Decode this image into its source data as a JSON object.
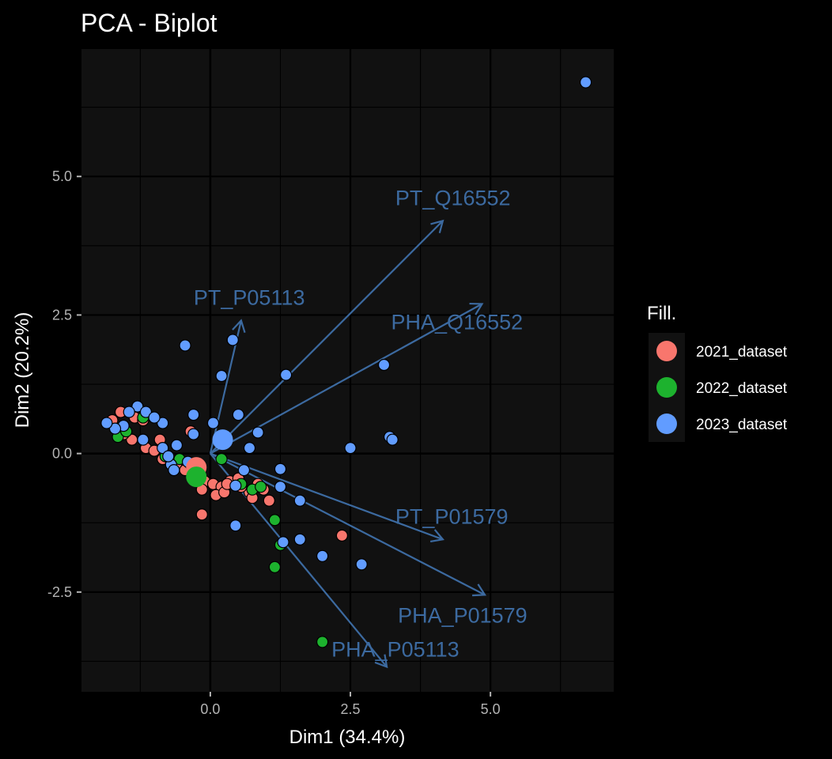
{
  "chart_data": {
    "type": "scatter",
    "title": "PCA - Biplot",
    "xlabel": "Dim1 (34.4%)",
    "ylabel": "Dim2 (20.2%)",
    "xlim": [
      -2.3,
      7.2
    ],
    "ylim": [
      -4.3,
      7.3
    ],
    "x_ticks": [
      0.0,
      2.5,
      5.0
    ],
    "x_tick_labels": [
      "0.0",
      "2.5",
      "5.0"
    ],
    "y_ticks": [
      -2.5,
      0.0,
      2.5,
      5.0
    ],
    "y_tick_labels": [
      "-2.5",
      "0.0",
      "2.5",
      "5.0"
    ],
    "grid": true,
    "legend": {
      "title": "Fill.",
      "position": "right",
      "entries": [
        {
          "label": "2021_dataset",
          "color": "#F8766D"
        },
        {
          "label": "2022_dataset",
          "color": "#1DB22E"
        },
        {
          "label": "2023_dataset",
          "color": "#619CFF"
        }
      ]
    },
    "arrow_color": "#3C6AA0",
    "series": [
      {
        "name": "2021_dataset",
        "color": "#F8766D",
        "centroid": [
          -0.25,
          -0.25
        ],
        "points": [
          [
            -1.6,
            0.75
          ],
          [
            -1.35,
            0.65
          ],
          [
            -1.2,
            0.6
          ],
          [
            -1.4,
            0.25
          ],
          [
            -1.15,
            0.1
          ],
          [
            -0.9,
            0.25
          ],
          [
            -1.0,
            0.05
          ],
          [
            -0.85,
            -0.1
          ],
          [
            -0.7,
            -0.15
          ],
          [
            -0.6,
            -0.25
          ],
          [
            -0.45,
            -0.3
          ],
          [
            -0.3,
            -0.45
          ],
          [
            -0.1,
            -0.5
          ],
          [
            0.05,
            -0.55
          ],
          [
            0.2,
            -0.6
          ],
          [
            0.35,
            -0.5
          ],
          [
            0.5,
            -0.45
          ],
          [
            0.7,
            -0.7
          ],
          [
            0.85,
            -0.55
          ],
          [
            0.95,
            -0.65
          ],
          [
            1.05,
            -0.85
          ],
          [
            -0.15,
            -0.65
          ],
          [
            0.1,
            -0.75
          ],
          [
            0.25,
            -0.7
          ],
          [
            0.55,
            -0.6
          ],
          [
            0.75,
            -0.8
          ],
          [
            -0.15,
            -1.1
          ],
          [
            2.35,
            -1.48
          ],
          [
            0.3,
            -0.55
          ],
          [
            -0.35,
            0.4
          ],
          [
            -1.75,
            0.6
          ],
          [
            -1.55,
            0.35
          ]
        ]
      },
      {
        "name": "2022_dataset",
        "color": "#1DB22E",
        "centroid": [
          -0.25,
          -0.42
        ],
        "points": [
          [
            -1.2,
            0.65
          ],
          [
            -1.65,
            0.3
          ],
          [
            -1.5,
            0.4
          ],
          [
            -0.8,
            -0.05
          ],
          [
            -0.55,
            -0.1
          ],
          [
            0.2,
            -0.1
          ],
          [
            0.55,
            -0.55
          ],
          [
            0.75,
            -0.65
          ],
          [
            1.15,
            -1.2
          ],
          [
            1.25,
            -1.65
          ],
          [
            1.15,
            -2.05
          ],
          [
            2.0,
            -3.4
          ],
          [
            0.9,
            -0.6
          ],
          [
            -0.35,
            -0.2
          ]
        ]
      },
      {
        "name": "2023_dataset",
        "color": "#619CFF",
        "centroid": [
          0.22,
          0.25
        ],
        "points": [
          [
            6.7,
            6.7
          ],
          [
            -0.45,
            1.95
          ],
          [
            0.4,
            2.05
          ],
          [
            0.2,
            1.4
          ],
          [
            1.35,
            1.42
          ],
          [
            3.1,
            1.6
          ],
          [
            3.2,
            0.3
          ],
          [
            3.25,
            0.25
          ],
          [
            2.5,
            0.1
          ],
          [
            0.5,
            0.7
          ],
          [
            0.85,
            0.38
          ],
          [
            0.7,
            0.1
          ],
          [
            -0.3,
            0.7
          ],
          [
            -0.3,
            0.35
          ],
          [
            0.05,
            0.55
          ],
          [
            -1.3,
            0.85
          ],
          [
            -1.15,
            0.75
          ],
          [
            -1.45,
            0.75
          ],
          [
            -1.55,
            0.5
          ],
          [
            -1.7,
            0.45
          ],
          [
            -1.85,
            0.55
          ],
          [
            -0.85,
            0.55
          ],
          [
            -1.0,
            0.65
          ],
          [
            -1.2,
            0.25
          ],
          [
            -0.6,
            0.15
          ],
          [
            -0.85,
            0.1
          ],
          [
            -0.7,
            -0.2
          ],
          [
            -0.75,
            -0.05
          ],
          [
            -0.65,
            -0.3
          ],
          [
            -0.4,
            -0.15
          ],
          [
            -0.2,
            -0.3
          ],
          [
            1.25,
            -0.28
          ],
          [
            1.25,
            -0.6
          ],
          [
            1.6,
            -0.85
          ],
          [
            0.45,
            -0.58
          ],
          [
            0.45,
            -1.3
          ],
          [
            1.3,
            -1.6
          ],
          [
            1.6,
            -1.55
          ],
          [
            2.0,
            -1.85
          ],
          [
            2.7,
            -2.0
          ],
          [
            0.6,
            -0.3
          ]
        ]
      }
    ],
    "arrows": [
      {
        "label": "PT_Q16552",
        "x": 4.15,
        "y": 4.2
      },
      {
        "label": "PHA_Q16552",
        "x": 4.85,
        "y": 2.7
      },
      {
        "label": "PT_P05113",
        "x": 0.55,
        "y": 2.4
      },
      {
        "label": "PT_P01579",
        "x": 4.15,
        "y": -1.55
      },
      {
        "label": "PHA_P01579",
        "x": 4.9,
        "y": -2.55
      },
      {
        "label": "PHA_P05113",
        "x": 3.15,
        "y": -3.85
      }
    ]
  }
}
